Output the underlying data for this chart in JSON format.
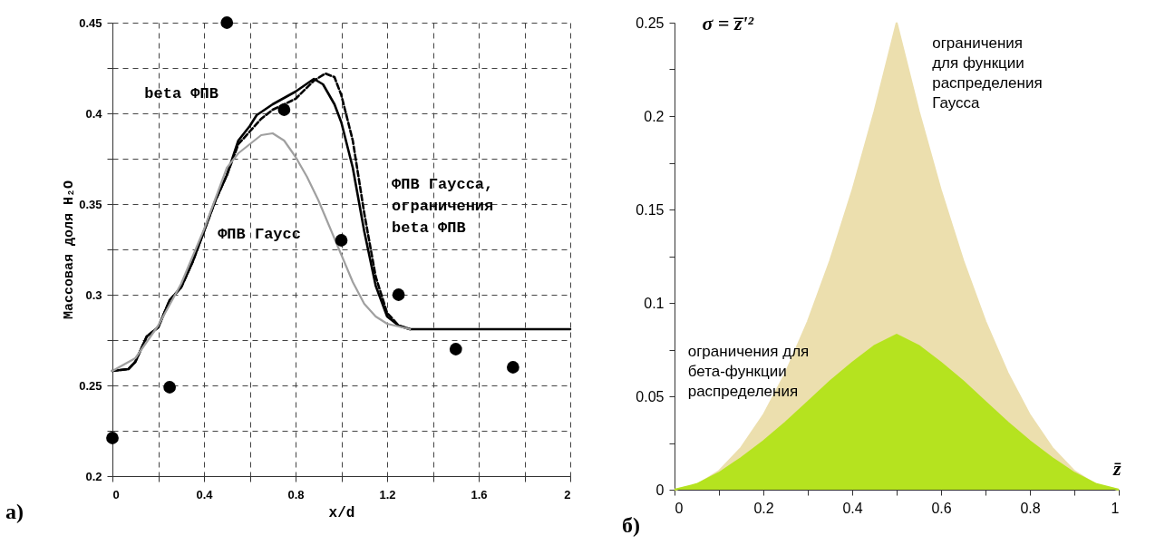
{
  "chart_data": [
    {
      "type": "line",
      "xlabel": "x/d",
      "ylabel": "Массовая доля H₂O",
      "xlim": [
        0,
        2
      ],
      "ylim": [
        0.2,
        0.45
      ],
      "xticks": [
        0,
        {
          "value": 0.2,
          "label": null
        },
        0.4,
        {
          "value": 0.6,
          "label": null
        },
        0.8,
        {
          "value": 1.0,
          "label": null
        },
        1.2,
        {
          "value": 1.4,
          "label": null
        },
        1.6,
        {
          "value": 1.8,
          "label": null
        },
        2
      ],
      "yticks": [
        0.2,
        {
          "value": 0.225,
          "label": null
        },
        0.25,
        {
          "value": 0.275,
          "label": null
        },
        0.3,
        {
          "value": 0.325,
          "label": null
        },
        0.35,
        {
          "value": 0.375,
          "label": null
        },
        0.4,
        {
          "value": 0.425,
          "label": null
        },
        0.45
      ],
      "grid": true,
      "annotations": [
        "a)"
      ],
      "series": [
        {
          "name": "beta ФПВ",
          "color": "#000000",
          "line_style": "solid",
          "x": [
            0,
            0.07,
            0.1,
            0.15,
            0.2,
            0.25,
            0.3,
            0.35,
            0.4,
            0.45,
            0.5,
            0.55,
            0.6,
            0.63,
            0.7,
            0.8,
            0.88,
            0.92,
            0.97,
            1.0,
            1.05,
            1.1,
            1.15,
            1.2,
            1.25,
            1.3,
            2.0
          ],
          "values": [
            0.258,
            0.259,
            0.263,
            0.277,
            0.282,
            0.297,
            0.304,
            0.318,
            0.335,
            0.352,
            0.366,
            0.385,
            0.393,
            0.399,
            0.405,
            0.412,
            0.419,
            0.416,
            0.405,
            0.395,
            0.37,
            0.335,
            0.305,
            0.288,
            0.283,
            0.281,
            0.281
          ]
        },
        {
          "name": "ФПВ Гаусса, ограничения beta ФПВ",
          "color": "#000000",
          "line_style": "dashed",
          "x": [
            0,
            0.07,
            0.1,
            0.15,
            0.2,
            0.25,
            0.3,
            0.35,
            0.4,
            0.45,
            0.5,
            0.55,
            0.6,
            0.65,
            0.7,
            0.8,
            0.88,
            0.93,
            0.97,
            1.0,
            1.05,
            1.1,
            1.15,
            1.2,
            1.25,
            1.3
          ],
          "values": [
            0.258,
            0.259,
            0.263,
            0.277,
            0.282,
            0.297,
            0.304,
            0.318,
            0.335,
            0.352,
            0.366,
            0.383,
            0.39,
            0.397,
            0.402,
            0.408,
            0.418,
            0.422,
            0.42,
            0.41,
            0.385,
            0.345,
            0.31,
            0.29,
            0.283,
            0.281
          ]
        },
        {
          "name": "ФПВ Гаусс",
          "color": "#a0a0a0",
          "line_style": "solid",
          "x": [
            0,
            0.1,
            0.2,
            0.3,
            0.4,
            0.5,
            0.55,
            0.6,
            0.65,
            0.7,
            0.75,
            0.8,
            0.85,
            0.9,
            0.95,
            1.0,
            1.05,
            1.1,
            1.15,
            1.2,
            1.3
          ],
          "values": [
            0.258,
            0.265,
            0.283,
            0.306,
            0.336,
            0.37,
            0.378,
            0.383,
            0.388,
            0.389,
            0.385,
            0.376,
            0.365,
            0.352,
            0.337,
            0.322,
            0.307,
            0.295,
            0.288,
            0.284,
            0.281
          ]
        },
        {
          "type": "scatter",
          "color": "#000000",
          "marker": "circle",
          "x": [
            0,
            0.25,
            0.5,
            0.75,
            1.0,
            1.25,
            1.5,
            1.75
          ],
          "values": [
            0.221,
            0.249,
            0.45,
            0.402,
            0.33,
            0.3,
            0.27,
            0.26
          ]
        }
      ]
    },
    {
      "type": "area",
      "xlabel": "z̄",
      "ylabel": "σ = z̅'²",
      "xlim": [
        0,
        1
      ],
      "ylim": [
        0,
        0.25
      ],
      "xticks": [
        0,
        {
          "value": 0.1,
          "label": null
        },
        0.2,
        {
          "value": 0.3,
          "label": null
        },
        0.4,
        {
          "value": 0.5,
          "label": null
        },
        0.6,
        {
          "value": 0.7,
          "label": null
        },
        0.8,
        {
          "value": 0.9,
          "label": null
        },
        1
      ],
      "yticks": [
        0,
        {
          "value": 0.025,
          "label": null
        },
        0.05,
        {
          "value": 0.075,
          "label": null
        },
        0.1,
        {
          "value": 0.125,
          "label": null
        },
        0.15,
        {
          "value": 0.175,
          "label": null
        },
        0.2,
        {
          "value": 0.225,
          "label": null
        },
        0.25
      ],
      "grid": false,
      "annotations": [
        "б)"
      ],
      "series": [
        {
          "name": "ограничения для функции распределения Гаусса",
          "color": "#ecdfae",
          "x": [
            0,
            0.05,
            0.1,
            0.15,
            0.2,
            0.25,
            0.3,
            0.35,
            0.4,
            0.45,
            0.5,
            0.55,
            0.6,
            0.65,
            0.7,
            0.75,
            0.8,
            0.85,
            0.9,
            0.95,
            1
          ],
          "values": [
            0,
            0.0025,
            0.01,
            0.0225,
            0.04,
            0.0625,
            0.09,
            0.1225,
            0.16,
            0.2025,
            0.25,
            0.2025,
            0.16,
            0.1225,
            0.09,
            0.0625,
            0.04,
            0.0225,
            0.01,
            0.0025,
            0
          ]
        },
        {
          "name": "ограничения для бета-функции распределения",
          "color": "#b5e31f",
          "x": [
            0,
            0.05,
            0.1,
            0.15,
            0.2,
            0.25,
            0.3,
            0.35,
            0.4,
            0.45,
            0.5,
            0.55,
            0.6,
            0.65,
            0.7,
            0.75,
            0.8,
            0.85,
            0.9,
            0.95,
            1
          ],
          "values": [
            0,
            0.003,
            0.009,
            0.017,
            0.026,
            0.036,
            0.047,
            0.058,
            0.068,
            0.077,
            0.083,
            0.077,
            0.068,
            0.058,
            0.047,
            0.036,
            0.026,
            0.017,
            0.009,
            0.003,
            0
          ]
        }
      ]
    }
  ]
}
